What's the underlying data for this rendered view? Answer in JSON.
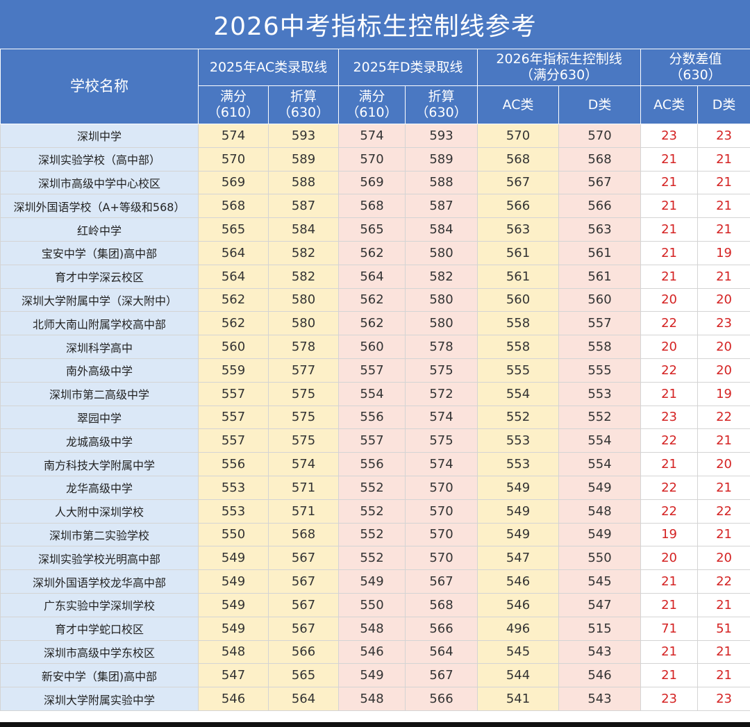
{
  "title": "2026中考指标生控制线参考",
  "header": {
    "school_name": "学校名称",
    "group_2025_ac": "2025年AC类录取线",
    "group_2025_d": "2025年D类录取线",
    "group_2026_line_1": "2026年指标生控制线",
    "group_2026_line_2": "（满分630）",
    "group_diff_1": "分数差值",
    "group_diff_2": "（630）",
    "full_score_1": "满分",
    "full_score_2": "（610）",
    "converted_1": "折算",
    "converted_2": "（630）",
    "ac": "AC类",
    "d": "D类"
  },
  "columns": [
    "school",
    "ac_full_2025",
    "ac_conv_2025",
    "d_full_2025",
    "d_conv_2025",
    "ac_2026",
    "d_2026",
    "diff_ac",
    "diff_d"
  ],
  "rows": [
    [
      "深圳中学",
      "574",
      "593",
      "574",
      "593",
      "570",
      "570",
      "23",
      "23"
    ],
    [
      "深圳实验学校（高中部）",
      "570",
      "589",
      "570",
      "589",
      "568",
      "568",
      "21",
      "21"
    ],
    [
      "深圳市高级中学中心校区",
      "569",
      "588",
      "569",
      "588",
      "567",
      "567",
      "21",
      "21"
    ],
    [
      "深圳外国语学校（A+等级和568）",
      "568",
      "587",
      "568",
      "587",
      "566",
      "566",
      "21",
      "21"
    ],
    [
      "红岭中学",
      "565",
      "584",
      "565",
      "584",
      "563",
      "563",
      "21",
      "21"
    ],
    [
      "宝安中学（集团)高中部",
      "564",
      "582",
      "562",
      "580",
      "561",
      "561",
      "21",
      "19"
    ],
    [
      "育才中学深云校区",
      "564",
      "582",
      "564",
      "582",
      "561",
      "561",
      "21",
      "21"
    ],
    [
      "深圳大学附属中学（深大附中）",
      "562",
      "580",
      "562",
      "580",
      "560",
      "560",
      "20",
      "20"
    ],
    [
      "北师大南山附属学校高中部",
      "562",
      "580",
      "562",
      "580",
      "558",
      "557",
      "22",
      "23"
    ],
    [
      "深圳科学高中",
      "560",
      "578",
      "560",
      "578",
      "558",
      "558",
      "20",
      "20"
    ],
    [
      "南外高级中学",
      "559",
      "577",
      "557",
      "575",
      "555",
      "555",
      "22",
      "20"
    ],
    [
      "深圳市第二高级中学",
      "557",
      "575",
      "554",
      "572",
      "554",
      "553",
      "21",
      "19"
    ],
    [
      "翠园中学",
      "557",
      "575",
      "556",
      "574",
      "552",
      "552",
      "23",
      "22"
    ],
    [
      "龙城高级中学",
      "557",
      "575",
      "557",
      "575",
      "553",
      "554",
      "22",
      "21"
    ],
    [
      "南方科技大学附属中学",
      "556",
      "574",
      "556",
      "574",
      "553",
      "554",
      "21",
      "20"
    ],
    [
      "龙华高级中学",
      "553",
      "571",
      "552",
      "570",
      "549",
      "549",
      "22",
      "21"
    ],
    [
      "人大附中深圳学校",
      "553",
      "571",
      "552",
      "570",
      "549",
      "548",
      "22",
      "22"
    ],
    [
      "深圳市第二实验学校",
      "550",
      "568",
      "552",
      "570",
      "549",
      "549",
      "19",
      "21"
    ],
    [
      "深圳实验学校光明高中部",
      "549",
      "567",
      "552",
      "570",
      "547",
      "550",
      "20",
      "20"
    ],
    [
      "深圳外国语学校龙华高中部",
      "549",
      "567",
      "549",
      "567",
      "546",
      "545",
      "21",
      "22"
    ],
    [
      "广东实验中学深圳学校",
      "549",
      "567",
      "550",
      "568",
      "546",
      "547",
      "21",
      "21"
    ],
    [
      "育才中学蛇口校区",
      "549",
      "567",
      "548",
      "566",
      "496",
      "515",
      "71",
      "51"
    ],
    [
      "深圳市高级中学东校区",
      "548",
      "566",
      "546",
      "564",
      "545",
      "543",
      "21",
      "21"
    ],
    [
      "新安中学（集团)高中部",
      "547",
      "565",
      "549",
      "567",
      "544",
      "546",
      "21",
      "21"
    ],
    [
      "深圳大学附属实验中学",
      "546",
      "564",
      "548",
      "566",
      "541",
      "543",
      "23",
      "23"
    ]
  ]
}
